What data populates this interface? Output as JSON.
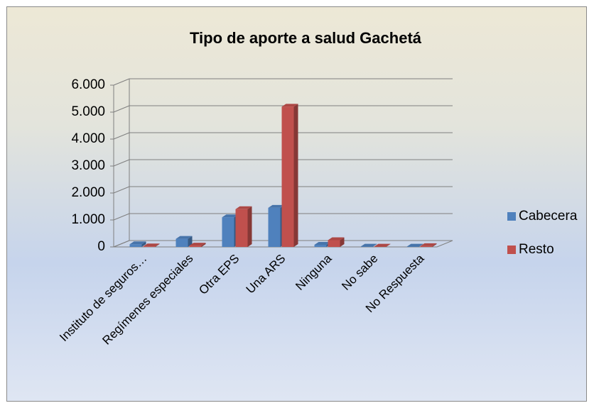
{
  "chart_data": {
    "type": "bar3d",
    "title": "Tipo de aporte a salud Gachetá",
    "categories": [
      "Instituto de seguros…",
      "Regímenes especiales",
      "Otra EPS",
      "Una ARS",
      "Ninguna",
      "No sabe",
      "No Respuesta"
    ],
    "series": [
      {
        "name": "Cabecera",
        "color": "#4f81bd",
        "values": [
          100,
          300,
          1100,
          1450,
          80,
          10,
          10
        ]
      },
      {
        "name": "Resto",
        "color": "#c0504d",
        "values": [
          20,
          50,
          1400,
          5200,
          250,
          10,
          30
        ]
      }
    ],
    "ylim": [
      0,
      6000
    ],
    "yticks": [
      0,
      {
        "value": 1000,
        "label": "1.000"
      },
      {
        "value": 2000,
        "label": "2.000"
      },
      {
        "value": 3000,
        "label": "3.000"
      },
      {
        "value": 4000,
        "label": "4.000"
      },
      {
        "value": 5000,
        "label": "5.000"
      },
      {
        "value": 6000,
        "label": "6.000"
      }
    ],
    "grid": true,
    "legend": "right"
  }
}
